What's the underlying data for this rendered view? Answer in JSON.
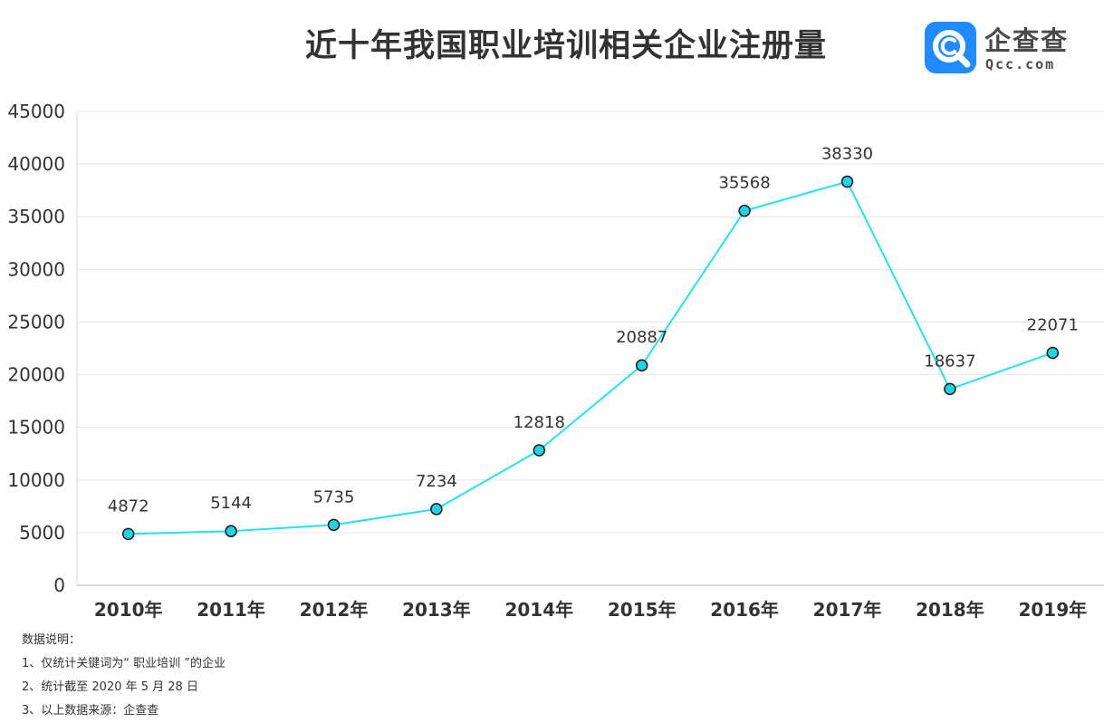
{
  "title": "近十年我国职业培训相关企业注册量",
  "logo": {
    "name": "企查查",
    "domain": "Qcc.com",
    "icon": "magnifier-c-icon",
    "color": "#1E8BFF"
  },
  "notes": {
    "heading": "数据说明：",
    "items": [
      "1、仅统计关键词为“ 职业培训 ”的企业",
      "2、统计截至 2020 年 5 月 28 日",
      "3、以上数据来源：企查查"
    ]
  },
  "chart_data": {
    "type": "line",
    "title": "近十年我国职业培训相关企业注册量",
    "xlabel": "",
    "ylabel": "",
    "categories": [
      "2010年",
      "2011年",
      "2012年",
      "2013年",
      "2014年",
      "2015年",
      "2016年",
      "2017年",
      "2018年",
      "2019年"
    ],
    "values": [
      4872,
      5144,
      5735,
      7234,
      12818,
      20887,
      35568,
      38330,
      18637,
      22071
    ],
    "data_labels": [
      "4872",
      "5144",
      "5735",
      "7234",
      "12818",
      "20887",
      "35568",
      "38330",
      "18637",
      "22071"
    ],
    "ylim": [
      0,
      45000
    ],
    "yticks": [
      0,
      5000,
      10000,
      15000,
      20000,
      25000,
      30000,
      35000,
      40000,
      45000
    ],
    "grid": true,
    "legend": "none",
    "line_color": "#1FE3F5",
    "marker_fill": "#1FD3E2",
    "marker_stroke": "#1a1a1a"
  }
}
